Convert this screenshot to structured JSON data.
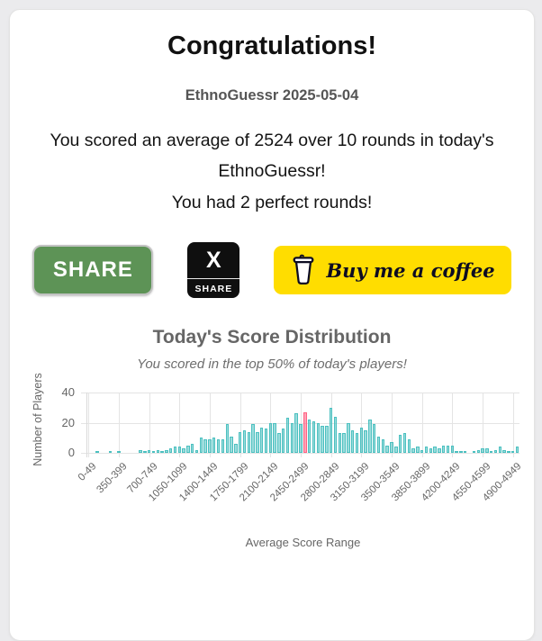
{
  "card": {
    "title": "Congratulations!",
    "date_line": "EthnoGuessr 2025-05-04",
    "score_text": "You scored an average of 2524 over 10 rounds in today's EthnoGuessr!",
    "perfect_text": "You had 2 perfect rounds!"
  },
  "buttons": {
    "share": {
      "label": "SHARE",
      "color": "#5d9356"
    },
    "x_share": {
      "icon": "X",
      "label": "SHARE",
      "color": "#0f0f0f"
    },
    "coffee": {
      "label": "Buy me a coffee",
      "color": "#ffdd00"
    }
  },
  "chart_data": {
    "type": "bar",
    "title": "Today's Score Distribution",
    "subtitle": "You scored in the top 50% of today's players!",
    "xlabel": "Average Score Range",
    "ylabel": "Number of Players",
    "ylim": [
      0,
      40
    ],
    "yticks": [
      0,
      20,
      40
    ],
    "bins": {
      "start": 0,
      "width": 50,
      "count": 100
    },
    "tick_every": 7,
    "tick_labels": [
      "0-49",
      "350-399",
      "700-749",
      "1050-1099",
      "1400-1449",
      "1750-1799",
      "2100-2149",
      "2450-2499",
      "2800-2849",
      "3150-3199",
      "3500-3549",
      "3850-3899",
      "4200-4249",
      "4550-4599",
      "4900-4949"
    ],
    "values": [
      0,
      0,
      1,
      0,
      0,
      1,
      0,
      1,
      0,
      0,
      0,
      0,
      2,
      1,
      2,
      1,
      2,
      1,
      2,
      3,
      4,
      4,
      3,
      5,
      6,
      2,
      10,
      9,
      9,
      10,
      9,
      9,
      19,
      11,
      6,
      14,
      15,
      14,
      19,
      14,
      17,
      16,
      20,
      20,
      13,
      16,
      23,
      20,
      26,
      19,
      27,
      22,
      21,
      20,
      18,
      18,
      30,
      24,
      13,
      13,
      20,
      15,
      13,
      17,
      15,
      22,
      19,
      11,
      9,
      5,
      7,
      4,
      12,
      13,
      9,
      3,
      4,
      2,
      4,
      3,
      4,
      3,
      5,
      5,
      5,
      1,
      1,
      1,
      0,
      1,
      2,
      3,
      3,
      1,
      2,
      4,
      2,
      1,
      1,
      4
    ],
    "highlight": {
      "index": 50,
      "label": "2500-2549"
    },
    "legend": "none",
    "grid": "on",
    "colors": {
      "bar_fill": "rgba(75,192,192,0.55)",
      "bar_border": "#4bc0c0",
      "highlight_fill": "rgba(255,99,132,0.6)",
      "highlight_border": "#ff6384",
      "grid": "#e4e4e4",
      "axis_text": "#666666"
    }
  }
}
